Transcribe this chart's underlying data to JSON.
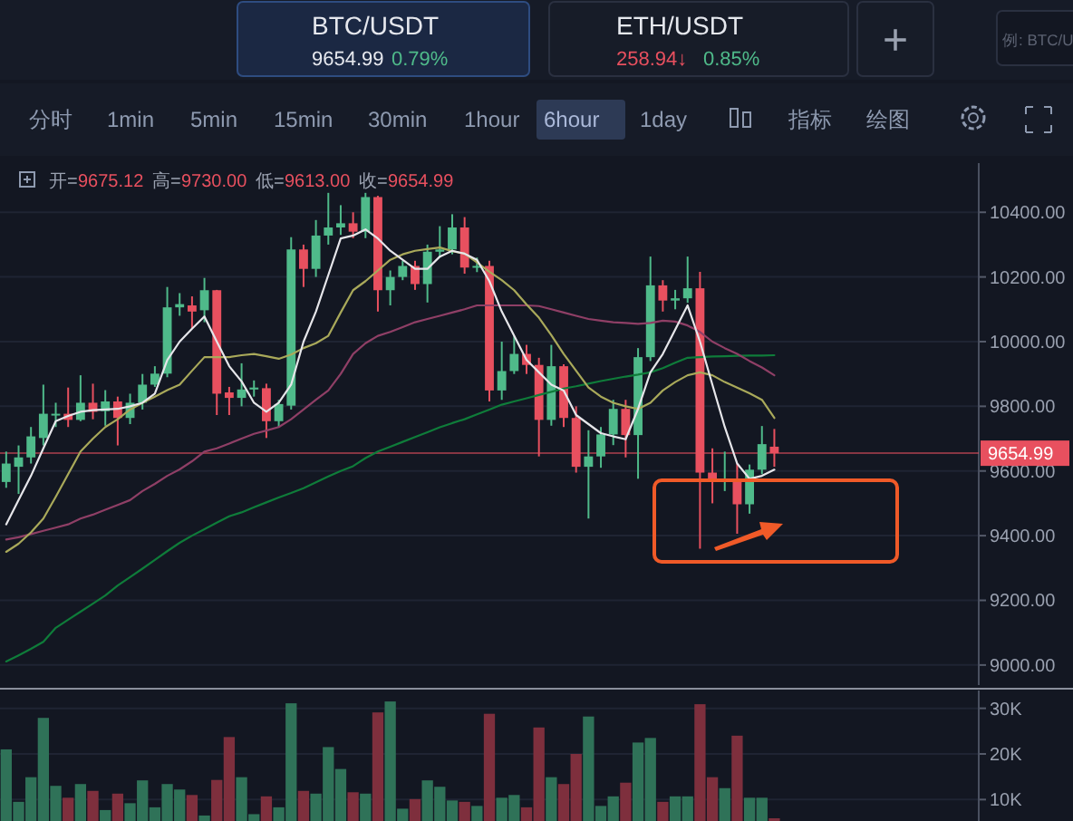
{
  "chart_data": [
    {
      "type": "candlestick",
      "categories": [
        null,
        null,
        null,
        null,
        null,
        null,
        null,
        null,
        null,
        null,
        null,
        null,
        null,
        null,
        null,
        null,
        null,
        null,
        null,
        null,
        null,
        null,
        null,
        null,
        null,
        null,
        null,
        null,
        null,
        null,
        null,
        null,
        null,
        null,
        null,
        null,
        null,
        null,
        null,
        null,
        null,
        null,
        null,
        null,
        null,
        null,
        null,
        null,
        null,
        null,
        null,
        null,
        null,
        null,
        null,
        null,
        null,
        null,
        null,
        null,
        null,
        null,
        null,
        null,
        null,
        null,
        null,
        null,
        null,
        null,
        null,
        null,
        null,
        null,
        null,
        null,
        null,
        null,
        null
      ],
      "ohlc": [
        [
          9566,
          9660,
          9548,
          9623
        ],
        [
          9613,
          9679,
          9529,
          9642
        ],
        [
          9642,
          9736,
          9623,
          9707
        ],
        [
          9702,
          9867,
          9679,
          9777
        ],
        [
          9777,
          9811,
          9736,
          9773
        ],
        [
          9777,
          9858,
          9736,
          9758
        ],
        [
          9758,
          9896,
          9754,
          9811
        ],
        [
          9811,
          9870,
          9760,
          9783
        ],
        [
          9785,
          9850,
          9740,
          9815
        ],
        [
          9815,
          9830,
          9679,
          9764
        ],
        [
          9764,
          9839,
          9745,
          9811
        ],
        [
          9811,
          9900,
          9790,
          9867
        ],
        [
          9867,
          9924,
          9860,
          9901
        ],
        [
          9901,
          10169,
          9890,
          10106
        ],
        [
          10106,
          10150,
          10080,
          10116
        ],
        [
          10112,
          10140,
          10040,
          10093
        ],
        [
          10097,
          10197,
          10060,
          10159
        ],
        [
          10159,
          10160,
          9773,
          9839
        ],
        [
          9843,
          9860,
          9773,
          9826
        ],
        [
          9826,
          9933,
          9800,
          9852
        ],
        [
          9852,
          9880,
          9830,
          9858
        ],
        [
          9856,
          9870,
          9702,
          9754
        ],
        [
          9754,
          9820,
          9736,
          9807
        ],
        [
          9802,
          10323,
          9790,
          10285
        ],
        [
          10285,
          10300,
          10169,
          10225
        ],
        [
          10225,
          10376,
          10200,
          10328
        ],
        [
          10328,
          10460,
          10300,
          10353
        ],
        [
          10353,
          10422,
          10330,
          10366
        ],
        [
          10366,
          10400,
          10320,
          10340
        ],
        [
          10340,
          10460,
          10320,
          10447
        ],
        [
          10447,
          10451,
          10093,
          10159
        ],
        [
          10159,
          10220,
          10112,
          10200
        ],
        [
          10200,
          10250,
          10190,
          10234
        ],
        [
          10234,
          10250,
          10160,
          10178
        ],
        [
          10178,
          10300,
          10121,
          10278
        ],
        [
          10278,
          10357,
          10260,
          10285
        ],
        [
          10285,
          10394,
          10270,
          10353
        ],
        [
          10353,
          10385,
          10210,
          10229
        ],
        [
          10229,
          10260,
          10215,
          10234
        ],
        [
          10234,
          10250,
          9815,
          9849
        ],
        [
          9849,
          10000,
          9820,
          9909
        ],
        [
          9909,
          10018,
          9900,
          9962
        ],
        [
          9962,
          9990,
          9900,
          9928
        ],
        [
          9928,
          9950,
          9645,
          9758
        ],
        [
          9758,
          9990,
          9740,
          9924
        ],
        [
          9924,
          9930,
          9736,
          9764
        ],
        [
          9764,
          9800,
          9595,
          9613
        ],
        [
          9613,
          9726,
          9453,
          9645
        ],
        [
          9645,
          9736,
          9610,
          9713
        ],
        [
          9713,
          9820,
          9680,
          9792
        ],
        [
          9792,
          9820,
          9642,
          9711
        ],
        [
          9711,
          9980,
          9576,
          9952
        ],
        [
          9952,
          10263,
          9940,
          10174
        ],
        [
          10174,
          10190,
          10093,
          10127
        ],
        [
          10127,
          10160,
          10100,
          10134
        ],
        [
          10134,
          10263,
          10120,
          10165
        ],
        [
          10165,
          10216,
          9360,
          9595
        ],
        [
          9595,
          9670,
          9500,
          9570
        ],
        [
          9570,
          9660,
          9538,
          9576
        ],
        [
          9576,
          9623,
          9406,
          9497
        ],
        [
          9497,
          9620,
          9468,
          9604
        ],
        [
          9604,
          9739,
          9590,
          9683
        ],
        [
          9675.12,
          9730,
          9613,
          9654.99
        ],
        null,
        null,
        null,
        null,
        null,
        null,
        null,
        null,
        null,
        null,
        null,
        null,
        null,
        null,
        null,
        null
      ],
      "colors": [
        "#4fba8a",
        "#4fba8a",
        "#4fba8a",
        "#4fba8a",
        "#4fba8a",
        "#e8505f",
        "#4fba8a",
        "#e8505f",
        "#4fba8a",
        "#e8505f",
        "#4fba8a",
        "#4fba8a",
        "#4fba8a",
        "#4fba8a",
        "#4fba8a",
        "#e8505f",
        "#4fba8a",
        "#e8505f",
        "#e8505f",
        "#4fba8a",
        "#4fba8a",
        "#e8505f",
        "#4fba8a",
        "#4fba8a",
        "#e8505f",
        "#4fba8a",
        "#4fba8a",
        "#4fba8a",
        "#e8505f",
        "#4fba8a",
        "#e8505f",
        "#4fba8a",
        "#4fba8a",
        "#e8505f",
        "#4fba8a",
        "#4fba8a",
        "#4fba8a",
        "#e8505f",
        "#4fba8a",
        "#e8505f",
        "#4fba8a",
        "#4fba8a",
        "#e8505f",
        "#e8505f",
        "#4fba8a",
        "#e8505f",
        "#e8505f",
        "#4fba8a",
        "#4fba8a",
        "#4fba8a",
        "#e8505f",
        "#4fba8a",
        "#4fba8a",
        "#e8505f",
        "#4fba8a",
        "#4fba8a",
        "#e8505f",
        "#e8505f",
        "#4fba8a",
        "#e8505f",
        "#4fba8a",
        "#4fba8a",
        "#e8505f",
        null,
        null,
        null,
        null,
        null,
        null,
        null,
        null,
        null,
        null,
        null,
        null,
        null,
        null,
        null,
        null
      ],
      "series": [
        {
          "type": "line",
          "color": "#0f7c3a",
          "values": [
            9011,
            9030,
            9050,
            9072,
            9115,
            9140,
            9165,
            9190,
            9215,
            9246,
            9272,
            9298,
            9325,
            9352,
            9378,
            9400,
            9420,
            9440,
            9460,
            9472,
            9488,
            9503,
            9518,
            9532,
            9547,
            9565,
            9583,
            9600,
            9615,
            9640,
            9660,
            9675,
            9690,
            9705,
            9720,
            9735,
            9748,
            9760,
            9775,
            9790,
            9805,
            9815,
            9825,
            9835,
            9845,
            9855,
            9862,
            9870,
            9878,
            9885,
            9892,
            9898,
            9905,
            9918,
            9935,
            9950,
            9952,
            9954,
            9955,
            9956,
            9957,
            9957,
            9958,
            null,
            null,
            null,
            null,
            null,
            null,
            null,
            null,
            null,
            null,
            null,
            null,
            null,
            null,
            null,
            null
          ]
        },
        {
          "type": "line",
          "color": "#8f3f66",
          "values": [
            9388,
            9395,
            9405,
            9415,
            9425,
            9435,
            9453,
            9465,
            9480,
            9495,
            9510,
            9538,
            9560,
            9585,
            9605,
            9630,
            9660,
            9670,
            9685,
            9700,
            9715,
            9725,
            9736,
            9760,
            9790,
            9820,
            9849,
            9900,
            9962,
            9995,
            10018,
            10030,
            10045,
            10060,
            10070,
            10080,
            10090,
            10100,
            10112,
            10112,
            10112,
            10112,
            10112,
            10110,
            10100,
            10090,
            10080,
            10070,
            10065,
            10060,
            10058,
            10055,
            10058,
            10065,
            10062,
            10050,
            10030,
            10000,
            9980,
            9962,
            9940,
            9920,
            9896,
            null,
            null,
            null,
            null,
            null,
            null,
            null,
            null,
            null,
            null,
            null,
            null,
            null,
            null,
            null,
            null
          ]
        },
        {
          "type": "line",
          "color": "#a9a95a",
          "values": [
            9350,
            9375,
            9410,
            9453,
            9520,
            9590,
            9660,
            9700,
            9736,
            9760,
            9790,
            9811,
            9830,
            9850,
            9867,
            9910,
            9952,
            9952,
            9952,
            9958,
            9962,
            9955,
            9947,
            9960,
            9980,
            9995,
            10018,
            10090,
            10159,
            10187,
            10220,
            10253,
            10270,
            10281,
            10286,
            10291,
            10280,
            10272,
            10245,
            10216,
            10190,
            10159,
            10115,
            10074,
            10020,
            9962,
            9910,
            9858,
            9830,
            9811,
            9800,
            9792,
            9811,
            9849,
            9875,
            9896,
            9905,
            9896,
            9875,
            9858,
            9840,
            9820,
            9764,
            null,
            null,
            null,
            null,
            null,
            null,
            null,
            null,
            null,
            null,
            null,
            null,
            null,
            null,
            null,
            null
          ]
        },
        {
          "type": "line",
          "color": "#e6e6ea",
          "values": [
            9435,
            9510,
            9585,
            9670,
            9754,
            9770,
            9783,
            9788,
            9790,
            9792,
            9800,
            9811,
            9839,
            9943,
            10000,
            10040,
            10078,
            10000,
            9924,
            9877,
            9811,
            9783,
            9811,
            9867,
            10000,
            10093,
            10206,
            10319,
            10328,
            10347,
            10319,
            10281,
            10253,
            10225,
            10225,
            10263,
            10281,
            10272,
            10253,
            10187,
            10093,
            10018,
            9943,
            9905,
            9867,
            9849,
            9773,
            9745,
            9717,
            9707,
            9698,
            9792,
            9905,
            9962,
            10037,
            10112,
            10000,
            9867,
            9736,
            9623,
            9576,
            9585,
            9604,
            null,
            null,
            null,
            null,
            null,
            null,
            null,
            null,
            null,
            null,
            null,
            null,
            null,
            null,
            null,
            null
          ]
        }
      ],
      "ylim": [
        8938,
        10552
      ],
      "yticks": [
        {
          "value": 9000,
          "label": "9000.00"
        },
        {
          "value": 9200,
          "label": "9200.00"
        },
        {
          "value": 9400,
          "label": "9400.00"
        },
        {
          "value": 9600,
          "label": "9600.00"
        },
        {
          "value": 9800,
          "label": "9800.00"
        },
        {
          "value": 10000,
          "label": "10000.00"
        },
        {
          "value": 10200,
          "label": "10200.00"
        },
        {
          "value": 10400,
          "label": "10400.00"
        }
      ],
      "grid": "y",
      "tick_labels": "y",
      "ref_lines": [
        {
          "axis": "y",
          "value": 9654.99,
          "label": "9654.99",
          "color": "#e8505f"
        }
      ],
      "annotations": [
        "BTC/USDT",
        "9654.99",
        "0.79%",
        "ETH/USDT",
        "258.94↓",
        "0.85%",
        "+",
        "例: BTC/U",
        "分时",
        "1min",
        "5min",
        "15min",
        "30min",
        "1hour",
        "6hour",
        "1day",
        "指标",
        "绘图",
        "开=",
        "9675.12",
        "高=",
        "9730.00",
        "低=",
        "9613.00",
        "收=",
        "9654.99"
      ]
    },
    {
      "type": "bar",
      "categories": [
        null,
        null,
        null,
        null,
        null,
        null,
        null,
        null,
        null,
        null,
        null,
        null,
        null,
        null,
        null,
        null,
        null,
        null,
        null,
        null,
        null,
        null,
        null,
        null,
        null,
        null,
        null,
        null,
        null,
        null,
        null,
        null,
        null,
        null,
        null,
        null,
        null,
        null,
        null,
        null,
        null,
        null,
        null,
        null,
        null,
        null,
        null,
        null,
        null,
        null,
        null,
        null,
        null,
        null,
        null,
        null,
        null,
        null,
        null,
        null,
        null,
        null,
        null,
        null,
        null,
        null,
        null,
        null,
        null,
        null,
        null,
        null,
        null,
        null,
        null,
        null,
        null,
        null,
        null
      ],
      "values": [
        21000,
        9500,
        14900,
        27900,
        13000,
        10400,
        13400,
        11900,
        7700,
        11300,
        9200,
        14200,
        8300,
        13400,
        12200,
        11000,
        6500,
        14300,
        23700,
        14900,
        6800,
        10700,
        8300,
        31100,
        11900,
        11300,
        21500,
        16700,
        11600,
        11300,
        29100,
        31500,
        8000,
        10100,
        14200,
        12800,
        9800,
        9500,
        8600,
        28800,
        10400,
        11000,
        8300,
        25800,
        14900,
        13400,
        20000,
        28200,
        8600,
        10700,
        13700,
        22500,
        23500,
        9500,
        10700,
        10700,
        30900,
        14900,
        12500,
        24000,
        10400,
        10400,
        5900,
        null,
        null,
        null,
        null,
        null,
        null,
        null,
        null,
        null,
        null,
        null,
        null,
        null,
        null,
        null,
        null
      ],
      "colors": [
        "#2f7258",
        "#2f7258",
        "#2f7258",
        "#2f7258",
        "#2f7258",
        "#7e2f3d",
        "#2f7258",
        "#7e2f3d",
        "#2f7258",
        "#7e2f3d",
        "#2f7258",
        "#2f7258",
        "#2f7258",
        "#2f7258",
        "#2f7258",
        "#7e2f3d",
        "#2f7258",
        "#7e2f3d",
        "#7e2f3d",
        "#2f7258",
        "#2f7258",
        "#7e2f3d",
        "#2f7258",
        "#2f7258",
        "#7e2f3d",
        "#2f7258",
        "#2f7258",
        "#2f7258",
        "#7e2f3d",
        "#2f7258",
        "#7e2f3d",
        "#2f7258",
        "#2f7258",
        "#7e2f3d",
        "#2f7258",
        "#2f7258",
        "#2f7258",
        "#7e2f3d",
        "#2f7258",
        "#7e2f3d",
        "#2f7258",
        "#2f7258",
        "#7e2f3d",
        "#7e2f3d",
        "#2f7258",
        "#7e2f3d",
        "#7e2f3d",
        "#2f7258",
        "#2f7258",
        "#2f7258",
        "#7e2f3d",
        "#2f7258",
        "#2f7258",
        "#7e2f3d",
        "#2f7258",
        "#2f7258",
        "#7e2f3d",
        "#7e2f3d",
        "#2f7258",
        "#7e2f3d",
        "#2f7258",
        "#2f7258",
        "#7e2f3d",
        null,
        null,
        null,
        null,
        null,
        null,
        null,
        null,
        null,
        null,
        null,
        null,
        null,
        null,
        null,
        null
      ],
      "ylim": [
        5300,
        33900
      ],
      "yticks": [
        {
          "value": 10000,
          "label": "10K"
        },
        {
          "value": 20000,
          "label": "20K"
        },
        {
          "value": 30000,
          "label": "30K"
        }
      ],
      "grid": "y",
      "tick_labels": "y"
    }
  ]
}
